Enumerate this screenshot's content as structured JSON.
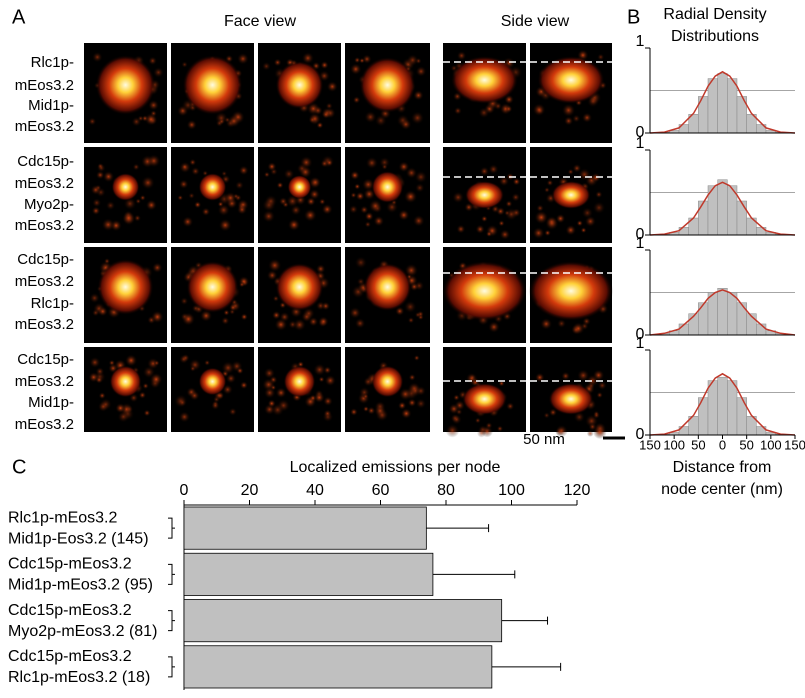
{
  "panel_labels": [
    "A",
    "B",
    "C"
  ],
  "face_view_title": "Face view",
  "side_view_title": "Side view",
  "row_labels": [
    [
      "Rlc1p-",
      "mEos3.2",
      "Mid1p-",
      "mEos3.2"
    ],
    [
      "Cdc15p-",
      "mEos3.2",
      "Myo2p-",
      "mEos3.2"
    ],
    [
      "Cdc15p-",
      "mEos3.2",
      "Rlc1p-",
      "mEos3.2"
    ],
    [
      "Cdc15p-",
      "mEos3.2",
      "Mid1p-",
      "mEos3.2"
    ]
  ],
  "scale_bar": "50 nm",
  "chart_data": [
    {
      "type": "histogram",
      "title": [
        "Radial Density",
        "Distributions"
      ],
      "bins": [
        -150,
        -130,
        -110,
        -90,
        -70,
        -50,
        -30,
        -10,
        10,
        30,
        50,
        70,
        90,
        110,
        130,
        150
      ],
      "values": [
        0,
        0.01,
        0.03,
        0.1,
        0.22,
        0.43,
        0.64,
        0.7,
        0.64,
        0.43,
        0.22,
        0.1,
        0.03,
        0.01,
        0
      ],
      "color": "#c0c0c0",
      "curve": {
        "color": "#c0392b",
        "x": [
          -150,
          -120,
          -90,
          -60,
          -45,
          -30,
          -15,
          0,
          15,
          30,
          45,
          60,
          90,
          120,
          150
        ],
        "values": [
          0,
          0.01,
          0.06,
          0.23,
          0.38,
          0.55,
          0.67,
          0.72,
          0.67,
          0.55,
          0.38,
          0.23,
          0.06,
          0.01,
          0
        ]
      },
      "xlim": [
        -150,
        150
      ],
      "ylim": [
        0,
        1
      ],
      "yticks": [
        0,
        1
      ],
      "hlines": [
        0.5
      ]
    },
    {
      "type": "histogram",
      "bins": [
        -150,
        -130,
        -110,
        -90,
        -70,
        -50,
        -30,
        -10,
        10,
        30,
        50,
        70,
        90,
        110,
        130,
        150
      ],
      "values": [
        0,
        0.01,
        0.03,
        0.09,
        0.2,
        0.4,
        0.58,
        0.65,
        0.58,
        0.4,
        0.2,
        0.09,
        0.03,
        0.01,
        0
      ],
      "color": "#c0c0c0",
      "curve": {
        "color": "#c0392b",
        "x": [
          -150,
          -120,
          -90,
          -60,
          -45,
          -30,
          -15,
          0,
          15,
          30,
          45,
          60,
          90,
          120,
          150
        ],
        "values": [
          0,
          0.01,
          0.05,
          0.2,
          0.33,
          0.47,
          0.58,
          0.62,
          0.58,
          0.47,
          0.33,
          0.2,
          0.05,
          0.01,
          0
        ]
      },
      "xlim": [
        -150,
        150
      ],
      "ylim": [
        0,
        1
      ],
      "yticks": [
        0,
        1
      ],
      "hlines": [
        0.5
      ]
    },
    {
      "type": "histogram",
      "bins": [
        -150,
        -130,
        -110,
        -90,
        -70,
        -50,
        -30,
        -10,
        10,
        30,
        50,
        70,
        90,
        110,
        130,
        150
      ],
      "values": [
        0,
        0.02,
        0.05,
        0.13,
        0.25,
        0.38,
        0.5,
        0.55,
        0.5,
        0.38,
        0.25,
        0.13,
        0.05,
        0.02,
        0
      ],
      "color": "#c0c0c0",
      "curve": {
        "color": "#c0392b",
        "x": [
          -150,
          -120,
          -90,
          -60,
          -45,
          -30,
          -15,
          0,
          15,
          30,
          45,
          60,
          90,
          120,
          150
        ],
        "values": [
          0,
          0.02,
          0.07,
          0.22,
          0.32,
          0.43,
          0.5,
          0.53,
          0.5,
          0.43,
          0.32,
          0.22,
          0.07,
          0.02,
          0
        ]
      },
      "xlim": [
        -150,
        150
      ],
      "ylim": [
        0,
        1
      ],
      "yticks": [
        0,
        1
      ],
      "hlines": [
        0.5
      ]
    },
    {
      "type": "histogram",
      "xlabel": [
        "Distance from",
        "node center (nm)"
      ],
      "bins": [
        -150,
        -130,
        -110,
        -90,
        -70,
        -50,
        -30,
        -10,
        10,
        30,
        50,
        70,
        90,
        110,
        130,
        150
      ],
      "values": [
        0,
        0.01,
        0.03,
        0.1,
        0.22,
        0.44,
        0.64,
        0.68,
        0.64,
        0.44,
        0.22,
        0.1,
        0.03,
        0.01,
        0
      ],
      "color": "#c0c0c0",
      "curve": {
        "color": "#c0392b",
        "x": [
          -150,
          -120,
          -90,
          -60,
          -45,
          -30,
          -15,
          0,
          15,
          30,
          45,
          60,
          90,
          120,
          150
        ],
        "values": [
          0,
          0.01,
          0.06,
          0.23,
          0.38,
          0.55,
          0.67,
          0.72,
          0.67,
          0.55,
          0.38,
          0.23,
          0.06,
          0.01,
          0
        ]
      },
      "xlim": [
        -150,
        150
      ],
      "ylim": [
        0,
        1
      ],
      "yticks": [
        0,
        1
      ],
      "hlines": [
        0.5
      ],
      "xticks": [
        {
          "value": -150,
          "label": "150"
        },
        {
          "value": -100,
          "label": "100"
        },
        {
          "value": -50,
          "label": "50"
        },
        0,
        50,
        100,
        150
      ]
    },
    {
      "type": "hbar",
      "title": "Localized emissions per node",
      "categories": [
        [
          "Rlc1p-mEos3.2",
          "Mid1p-Eos3.2 (145)"
        ],
        [
          "Cdc15p-mEos3.2",
          " Mid1p-mEos3.2 (95)"
        ],
        [
          "Cdc15p-mEos3.2",
          "Myo2p-mEos3.2 (81)"
        ],
        [
          "Cdc15p-mEos3.2",
          "Rlc1p-mEos3.2 (18)"
        ]
      ],
      "values": [
        74,
        76,
        97,
        94
      ],
      "errors": [
        19,
        25,
        14,
        21
      ],
      "color": "#c0c0c0",
      "xlim": [
        0,
        120
      ],
      "xticks": [
        0,
        20,
        40,
        60,
        80,
        100,
        120
      ]
    }
  ]
}
